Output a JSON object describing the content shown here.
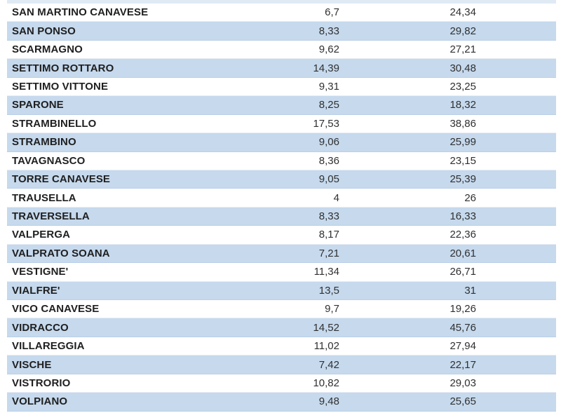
{
  "colors": {
    "row_alt_background": "#c6d9ed",
    "name_text": "#1f1f1f",
    "number_text": "#303030"
  },
  "table": {
    "columns": [
      "municipality",
      "value_1",
      "value_2"
    ],
    "decimal_separator": ",",
    "rows": [
      {
        "name": "SAN MARTINO CANAVESE",
        "v1": "6,7",
        "v2": "24,34"
      },
      {
        "name": "SAN PONSO",
        "v1": "8,33",
        "v2": "29,82"
      },
      {
        "name": "SCARMAGNO",
        "v1": "9,62",
        "v2": "27,21"
      },
      {
        "name": "SETTIMO ROTTARO",
        "v1": "14,39",
        "v2": "30,48"
      },
      {
        "name": "SETTIMO VITTONE",
        "v1": "9,31",
        "v2": "23,25"
      },
      {
        "name": "SPARONE",
        "v1": "8,25",
        "v2": "18,32"
      },
      {
        "name": "STRAMBINELLO",
        "v1": "17,53",
        "v2": "38,86"
      },
      {
        "name": "STRAMBINO",
        "v1": "9,06",
        "v2": "25,99"
      },
      {
        "name": "TAVAGNASCO",
        "v1": "8,36",
        "v2": "23,15"
      },
      {
        "name": "TORRE CANAVESE",
        "v1": "9,05",
        "v2": "25,39"
      },
      {
        "name": "TRAUSELLA",
        "v1": "4",
        "v2": "26"
      },
      {
        "name": "TRAVERSELLA",
        "v1": "8,33",
        "v2": "16,33"
      },
      {
        "name": "VALPERGA",
        "v1": "8,17",
        "v2": "22,36"
      },
      {
        "name": "VALPRATO SOANA",
        "v1": "7,21",
        "v2": "20,61"
      },
      {
        "name": "VESTIGNE'",
        "v1": "11,34",
        "v2": "26,71"
      },
      {
        "name": "VIALFRE'",
        "v1": "13,5",
        "v2": "31"
      },
      {
        "name": "VICO CANAVESE",
        "v1": "9,7",
        "v2": "19,26"
      },
      {
        "name": "VIDRACCO",
        "v1": "14,52",
        "v2": "45,76"
      },
      {
        "name": "VILLAREGGIA",
        "v1": "11,02",
        "v2": "27,94"
      },
      {
        "name": "VISCHE",
        "v1": "7,42",
        "v2": "22,17"
      },
      {
        "name": "VISTRORIO",
        "v1": "10,82",
        "v2": "29,03"
      },
      {
        "name": "VOLPIANO",
        "v1": "9,48",
        "v2": "25,65"
      }
    ]
  }
}
